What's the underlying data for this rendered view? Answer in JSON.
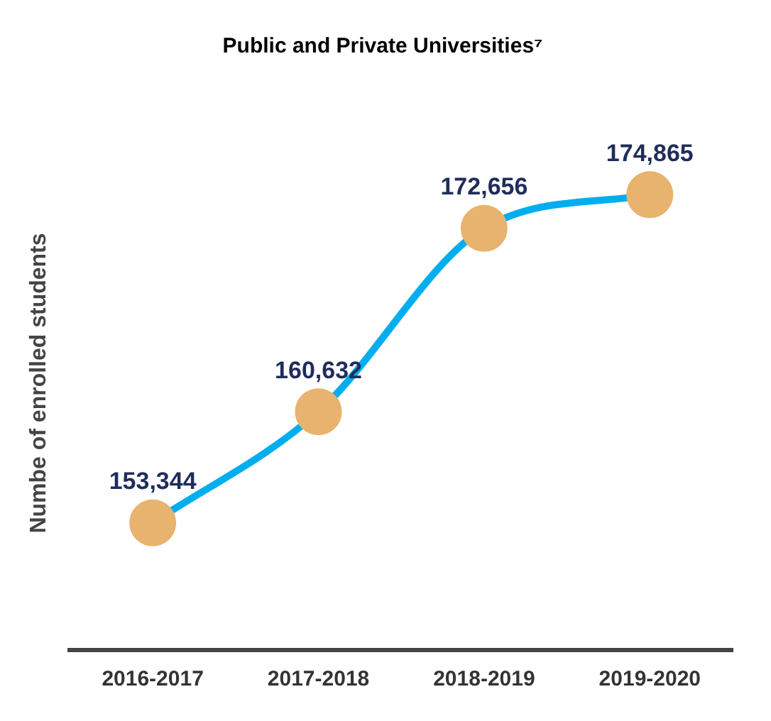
{
  "chart_data": {
    "type": "line",
    "title": "Public and Private Universities⁷",
    "ylabel": "Numbe of enrolled students",
    "categories": [
      "2016-2017",
      "2017-2018",
      "2018-2019",
      "2019-2020"
    ],
    "series": [
      {
        "color": "#00aeef",
        "colors": [
          "#e8b36e",
          "#e8b36e",
          "#e8b36e",
          "#e8b36e"
        ],
        "values": [
          153344,
          160632,
          172656,
          174865
        ],
        "value_labels": [
          "153,344",
          "160,632",
          "172,656",
          "174,865"
        ]
      }
    ],
    "marker": "circle",
    "tick_labels": "x",
    "grid": false,
    "legend": false
  }
}
